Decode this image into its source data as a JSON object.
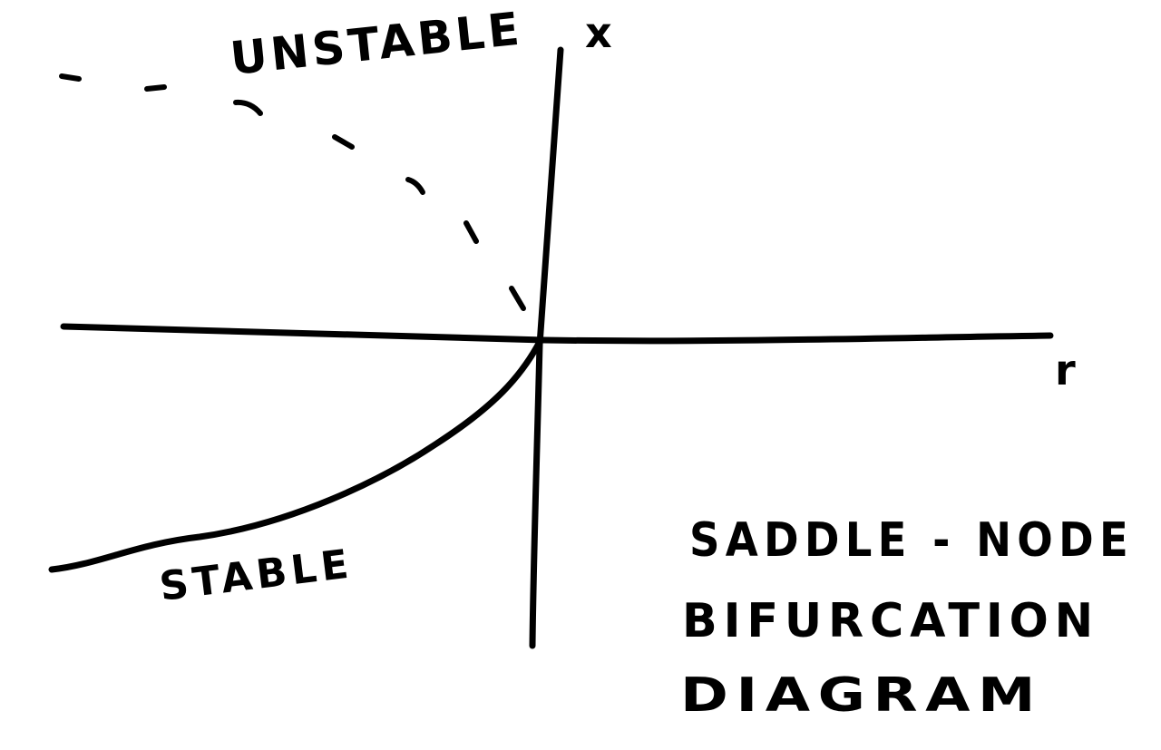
{
  "diagram": {
    "axes": {
      "x_axis_label": "r",
      "y_axis_label": "x"
    },
    "branches": {
      "unstable": {
        "label": "UNSTABLE",
        "style": "dashed"
      },
      "stable": {
        "label": "STABLE",
        "style": "solid"
      }
    },
    "title_lines": [
      "SADDLE - NODE",
      "BIFURCATION",
      "DIAGRAM"
    ],
    "ink_color": "#000000",
    "background_color": "#ffffff"
  }
}
